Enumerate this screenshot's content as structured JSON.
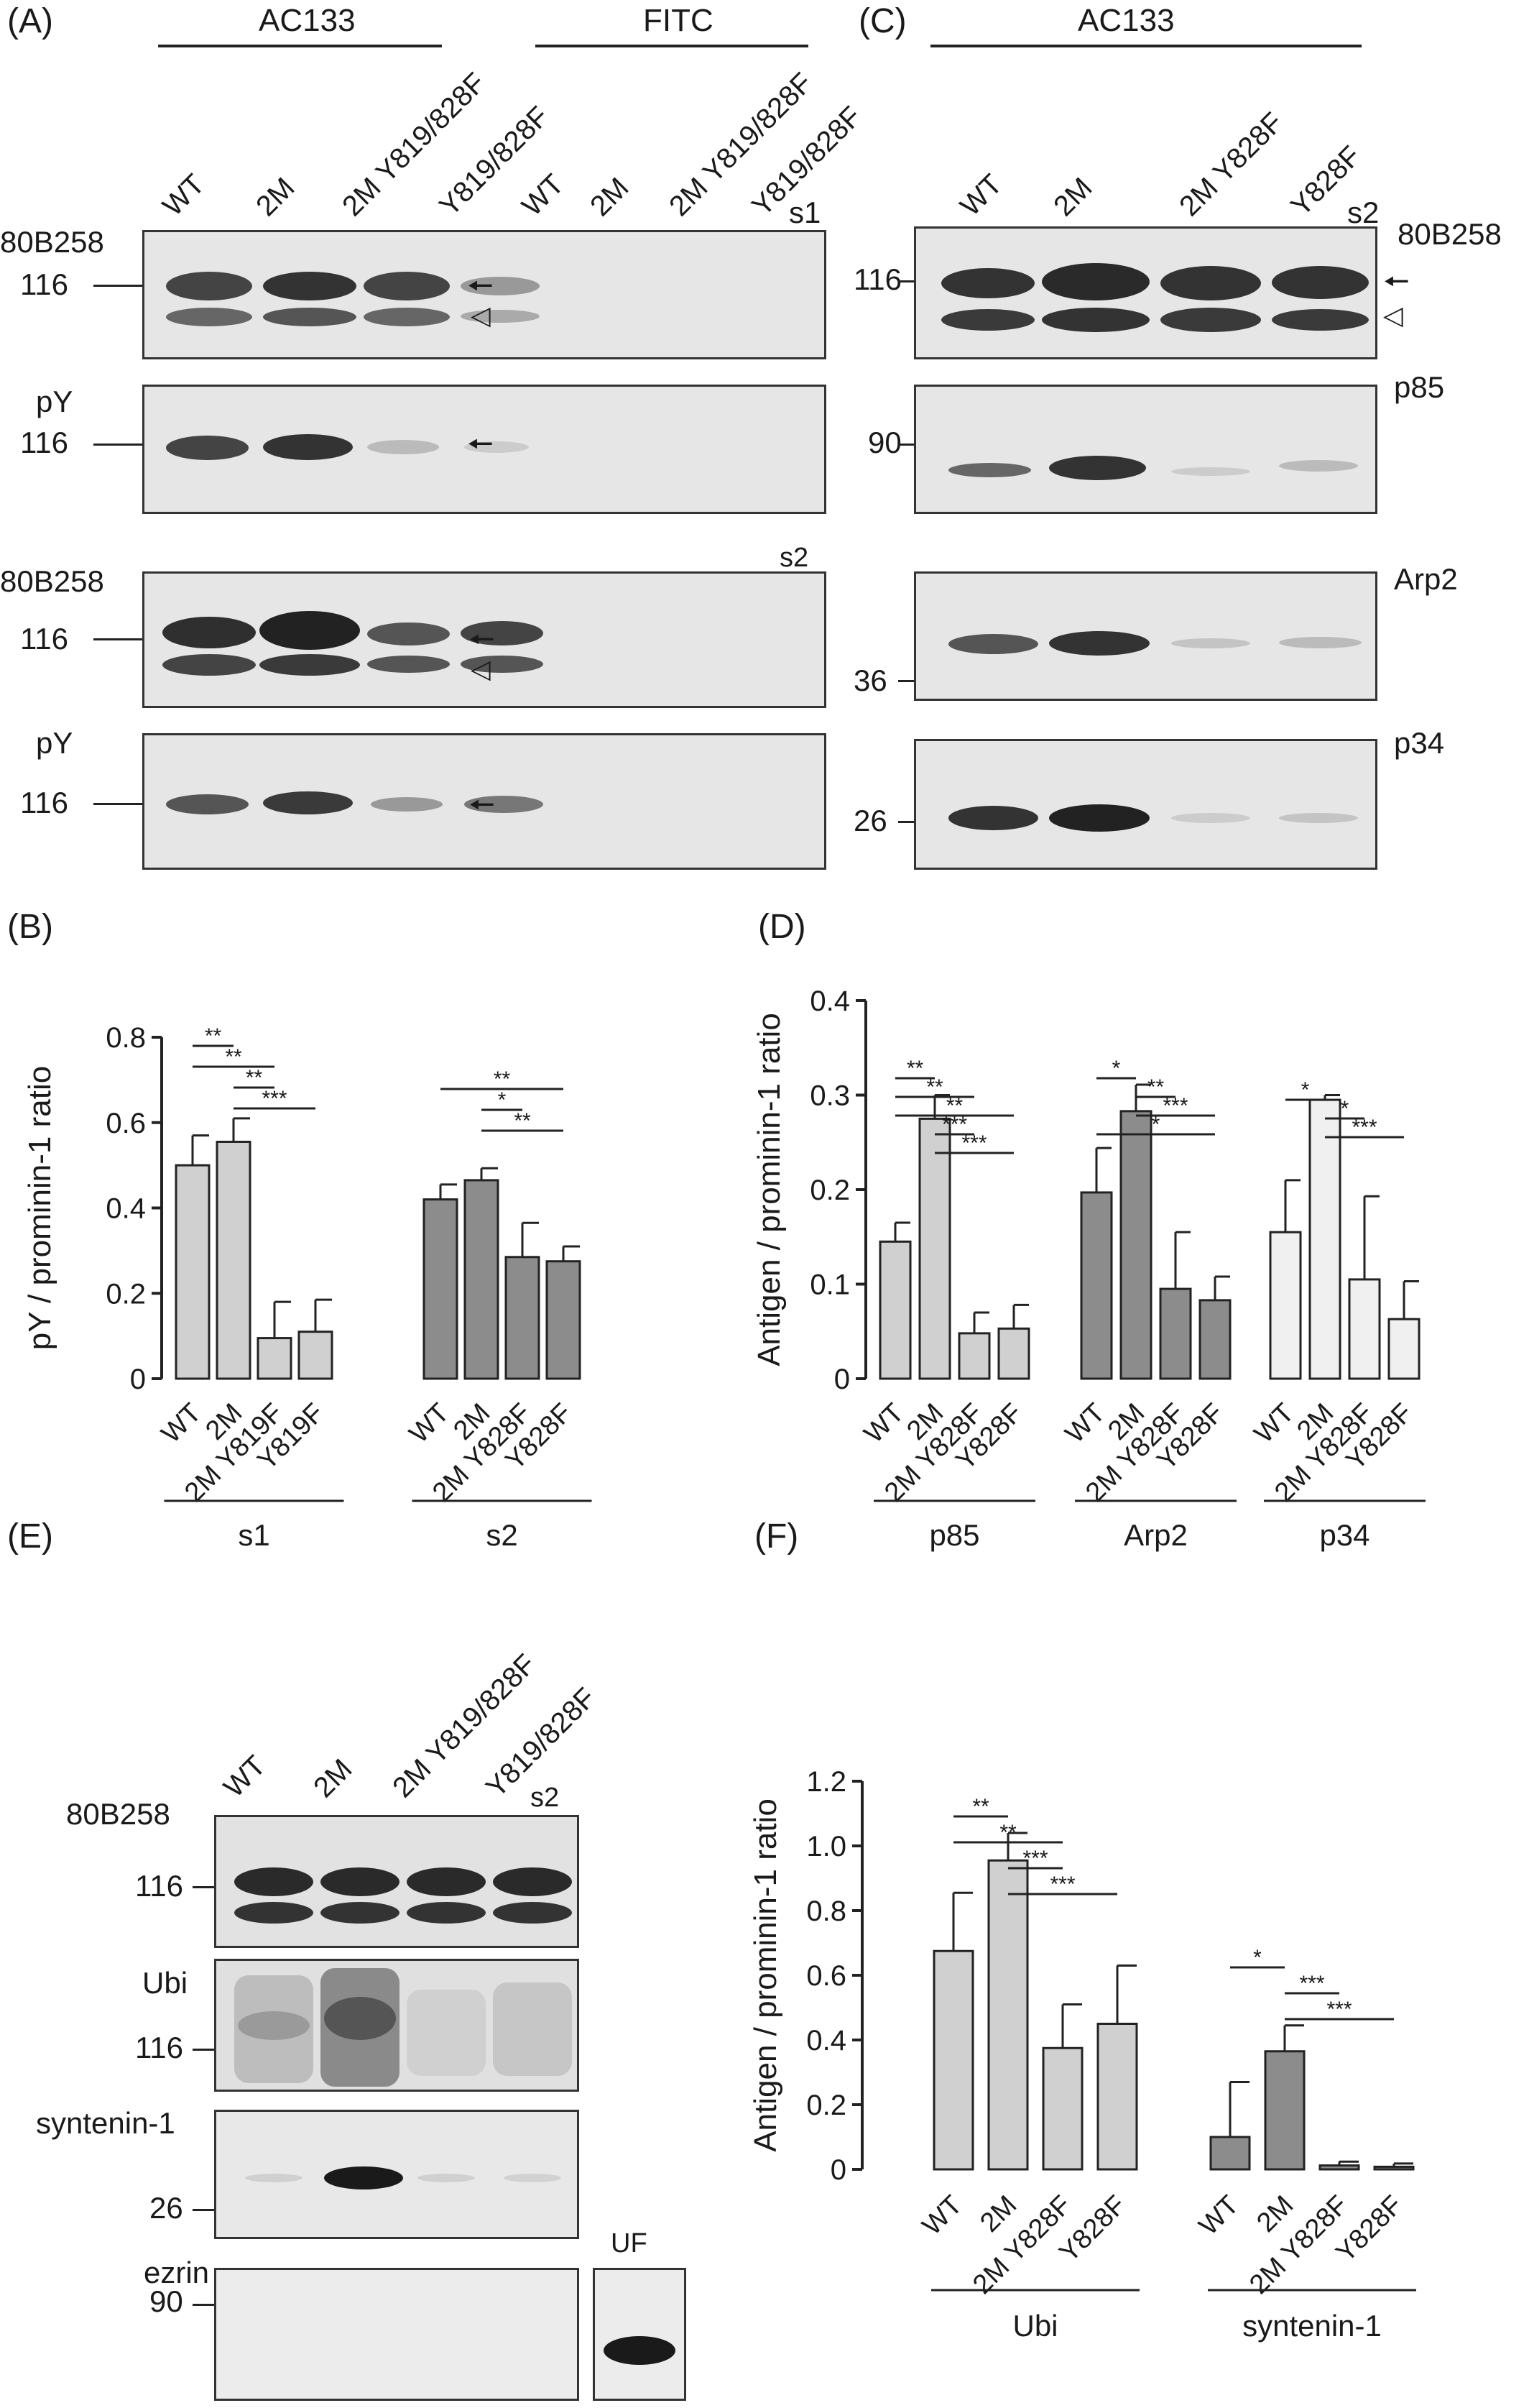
{
  "panels": {
    "A": {
      "label": "(A)",
      "group1": "AC133",
      "group2": "FITC",
      "lanes": [
        "WT",
        "2M",
        "2M Y819/828F",
        "Y819/828F",
        "WT",
        "2M",
        "2M Y819/828F",
        "Y819/828F"
      ],
      "blots": [
        {
          "antibody": "80B258",
          "mw": "116",
          "tag": "s1"
        },
        {
          "antibody": "pY",
          "mw": "116",
          "tag": ""
        },
        {
          "antibody": "80B258",
          "mw": "116",
          "tag": "s2"
        },
        {
          "antibody": "pY",
          "mw": "116",
          "tag": ""
        }
      ]
    },
    "C": {
      "label": "(C)",
      "group1": "AC133",
      "lanes": [
        "WT",
        "2M",
        "2M Y828F",
        "Y828F"
      ],
      "tag": "s2",
      "blots": [
        {
          "antibody": "80B258",
          "mw": "116"
        },
        {
          "antibody": "p85",
          "mw": "90"
        },
        {
          "antibody": "Arp2",
          "mw": "36"
        },
        {
          "antibody": "p34",
          "mw": "26"
        }
      ]
    },
    "E": {
      "label": "(E)",
      "lanes": [
        "WT",
        "2M",
        "2M Y819/828F",
        "Y819/828F"
      ],
      "tag": "s2",
      "uf": "UF",
      "blots": [
        {
          "antibody": "80B258",
          "mw": "116"
        },
        {
          "antibody": "Ubi",
          "mw": "116"
        },
        {
          "antibody": "syntenin-1",
          "mw": "26"
        },
        {
          "antibody": "ezrin",
          "mw": "90"
        }
      ]
    },
    "B": {
      "label": "(B)"
    },
    "D": {
      "label": "(D)"
    },
    "F": {
      "label": "(F)"
    }
  },
  "chart_data": [
    {
      "panel": "B",
      "type": "bar",
      "ylabel": "pY / prominin-1 ratio",
      "ylim": [
        0,
        0.8
      ],
      "yticks": [
        "0",
        "0.2",
        "0.4",
        "0.6",
        "0.8"
      ],
      "groups": [
        {
          "name": "s1",
          "color": "#d0d0d0",
          "categories": [
            "WT",
            "2M",
            "2M Y819F",
            "Y819F"
          ],
          "values": [
            0.5,
            0.555,
            0.095,
            0.11
          ],
          "errors": [
            0.07,
            0.055,
            0.085,
            0.075
          ]
        },
        {
          "name": "s2",
          "color": "#8c8c8c",
          "categories": [
            "WT",
            "2M",
            "2M Y828F",
            "Y828F"
          ],
          "values": [
            0.42,
            0.465,
            0.285,
            0.275
          ],
          "errors": [
            0.035,
            0.028,
            0.08,
            0.035
          ]
        }
      ],
      "significance": [
        {
          "group": 0,
          "from": 0,
          "to": 1,
          "label": "**"
        },
        {
          "group": 0,
          "from": 0,
          "to": 2,
          "label": "**"
        },
        {
          "group": 0,
          "from": 1,
          "to": 2,
          "label": "**"
        },
        {
          "group": 0,
          "from": 1,
          "to": 3,
          "label": "***"
        },
        {
          "group": 1,
          "from": 0,
          "to": 3,
          "label": "**"
        },
        {
          "group": 1,
          "from": 1,
          "to": 2,
          "label": "*"
        },
        {
          "group": 1,
          "from": 1,
          "to": 3,
          "label": "**"
        }
      ]
    },
    {
      "panel": "D",
      "type": "bar",
      "ylabel": "Antigen / prominin-1 ratio",
      "ylim": [
        0,
        0.4
      ],
      "yticks": [
        "0",
        "0.1",
        "0.2",
        "0.3",
        "0.4"
      ],
      "groups": [
        {
          "name": "p85",
          "color": "#d0d0d0",
          "categories": [
            "WT",
            "2M",
            "2M Y828F",
            "Y828F"
          ],
          "values": [
            0.145,
            0.275,
            0.048,
            0.053
          ],
          "errors": [
            0.02,
            0.025,
            0.022,
            0.025
          ]
        },
        {
          "name": "Arp2",
          "color": "#8c8c8c",
          "categories": [
            "WT",
            "2M",
            "2M Y828F",
            "Y828F"
          ],
          "values": [
            0.197,
            0.283,
            0.095,
            0.083
          ],
          "errors": [
            0.047,
            0.028,
            0.06,
            0.025
          ]
        },
        {
          "name": "p34",
          "color": "#f0f0f0",
          "categories": [
            "WT",
            "2M",
            "2M Y828F",
            "Y828F"
          ],
          "values": [
            0.155,
            0.295,
            0.105,
            0.063
          ],
          "errors": [
            0.055,
            0.005,
            0.088,
            0.04
          ]
        }
      ],
      "significance": [
        {
          "group": 0,
          "from": 0,
          "to": 1,
          "label": "**"
        },
        {
          "group": 0,
          "from": 0,
          "to": 2,
          "label": "**"
        },
        {
          "group": 0,
          "from": 0,
          "to": 3,
          "label": "**"
        },
        {
          "group": 0,
          "from": 1,
          "to": 2,
          "label": "***"
        },
        {
          "group": 0,
          "from": 1,
          "to": 3,
          "label": "***"
        },
        {
          "group": 1,
          "from": 0,
          "to": 1,
          "label": "*"
        },
        {
          "group": 1,
          "from": 1,
          "to": 2,
          "label": "**"
        },
        {
          "group": 1,
          "from": 1,
          "to": 3,
          "label": "***"
        },
        {
          "group": 1,
          "from": 0,
          "to": 3,
          "label": "*"
        },
        {
          "group": 2,
          "from": 0,
          "to": 1,
          "label": "*"
        },
        {
          "group": 2,
          "from": 1,
          "to": 2,
          "label": "*"
        },
        {
          "group": 2,
          "from": 1,
          "to": 3,
          "label": "***"
        }
      ]
    },
    {
      "panel": "F",
      "type": "bar",
      "ylabel": "Antigen / prominin-1 ratio",
      "ylim": [
        0,
        1.2
      ],
      "yticks": [
        "0",
        "0.2",
        "0.4",
        "0.6",
        "0.8",
        "1.0",
        "1.2"
      ],
      "groups": [
        {
          "name": "Ubi",
          "color": "#d0d0d0",
          "categories": [
            "WT",
            "2M",
            "2M Y828F",
            "Y828F"
          ],
          "values": [
            0.675,
            0.955,
            0.375,
            0.45
          ],
          "errors": [
            0.18,
            0.085,
            0.135,
            0.18
          ]
        },
        {
          "name": "syntenin-1",
          "color": "#8c8c8c",
          "categories": [
            "WT",
            "2M",
            "2M Y828F",
            "Y828F"
          ],
          "values": [
            0.1,
            0.365,
            0.012,
            0.008
          ],
          "errors": [
            0.17,
            0.08,
            0.012,
            0.01
          ]
        }
      ],
      "significance": [
        {
          "group": 0,
          "from": 0,
          "to": 1,
          "label": "**"
        },
        {
          "group": 0,
          "from": 0,
          "to": 2,
          "label": "**"
        },
        {
          "group": 0,
          "from": 1,
          "to": 2,
          "label": "***"
        },
        {
          "group": 0,
          "from": 1,
          "to": 3,
          "label": "***"
        },
        {
          "group": 1,
          "from": 0,
          "to": 1,
          "label": "*"
        },
        {
          "group": 1,
          "from": 1,
          "to": 2,
          "label": "***"
        },
        {
          "group": 1,
          "from": 1,
          "to": 3,
          "label": "***"
        }
      ]
    }
  ]
}
